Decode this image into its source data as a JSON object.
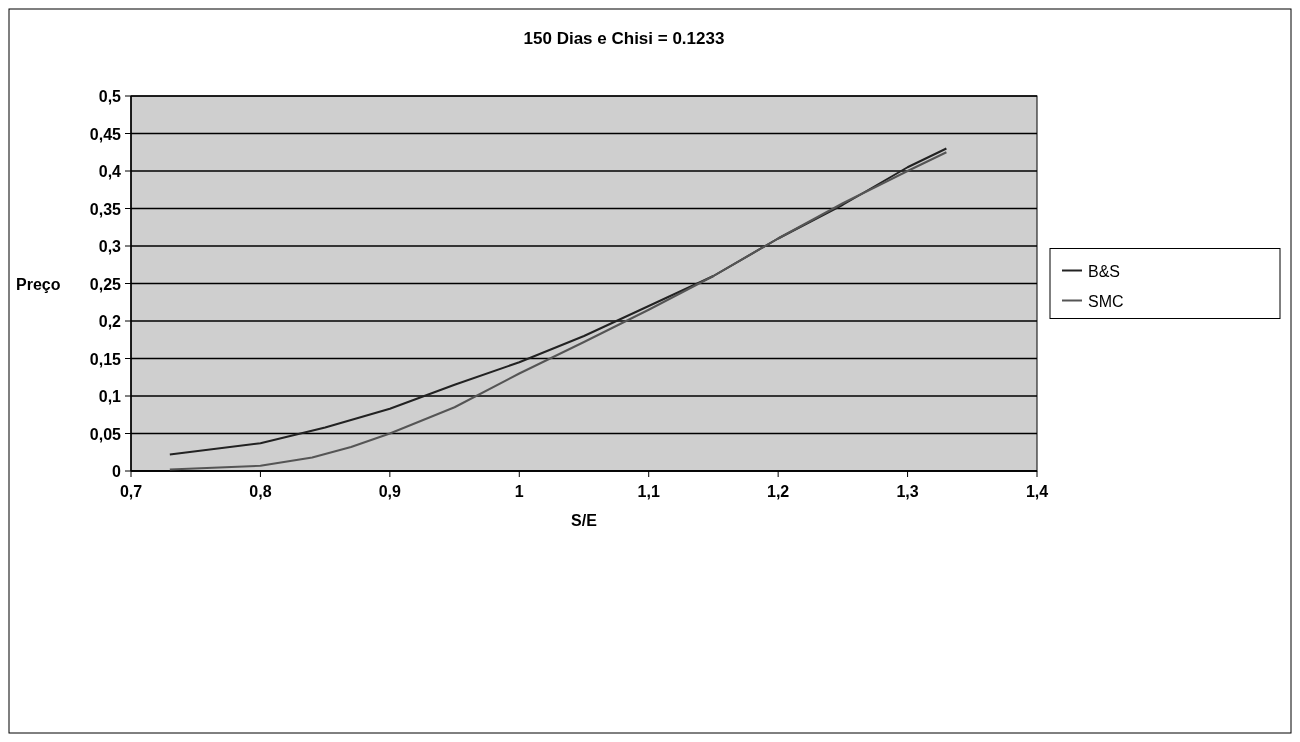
{
  "chart_data": {
    "type": "line",
    "title": "150 Dias e Chisi = 0.1233",
    "xlabel": "S/E",
    "ylabel": "Preço",
    "xlim": [
      0.7,
      1.4
    ],
    "xticks": [
      {
        "value": 0.7,
        "label": "0,7"
      },
      {
        "value": 0.8,
        "label": "0,8"
      },
      {
        "value": 0.9,
        "label": "0,9"
      },
      1,
      {
        "value": 1.1,
        "label": "1,1"
      },
      {
        "value": 1.2,
        "label": "1,2"
      },
      {
        "value": 1.3,
        "label": "1,3"
      },
      {
        "value": 1.4,
        "label": "1,4"
      }
    ],
    "ylim": [
      0,
      0.5
    ],
    "yticks": [
      0,
      {
        "value": 0.05,
        "label": "0,05"
      },
      {
        "value": 0.1,
        "label": "0,1"
      },
      {
        "value": 0.15,
        "label": "0,15"
      },
      {
        "value": 0.2,
        "label": "0,2"
      },
      {
        "value": 0.25,
        "label": "0,25"
      },
      {
        "value": 0.3,
        "label": "0,3"
      },
      {
        "value": 0.35,
        "label": "0,35"
      },
      {
        "value": 0.4,
        "label": "0,4"
      },
      {
        "value": 0.45,
        "label": "0,45"
      },
      {
        "value": 0.5,
        "label": "0,5"
      }
    ],
    "grid": "y",
    "legend": "right",
    "marker": "none",
    "line_style": "solid",
    "series": [
      {
        "name": "B&S",
        "color": "#222222",
        "x": [
          0.73,
          0.8,
          0.85,
          0.9,
          0.95,
          1.0,
          1.05,
          1.1,
          1.15,
          1.2,
          1.25,
          1.3,
          1.33
        ],
        "values": [
          0.022,
          0.037,
          0.058,
          0.083,
          0.115,
          0.145,
          0.18,
          0.22,
          0.26,
          0.31,
          0.355,
          0.405,
          0.43
        ]
      },
      {
        "name": "SMC",
        "color": "#555555",
        "x": [
          0.73,
          0.8,
          0.84,
          0.87,
          0.9,
          0.95,
          1.0,
          1.05,
          1.1,
          1.15,
          1.2,
          1.25,
          1.3,
          1.33
        ],
        "values": [
          0.002,
          0.007,
          0.018,
          0.032,
          0.05,
          0.085,
          0.13,
          0.172,
          0.215,
          0.26,
          0.31,
          0.357,
          0.4,
          0.425
        ]
      }
    ]
  }
}
